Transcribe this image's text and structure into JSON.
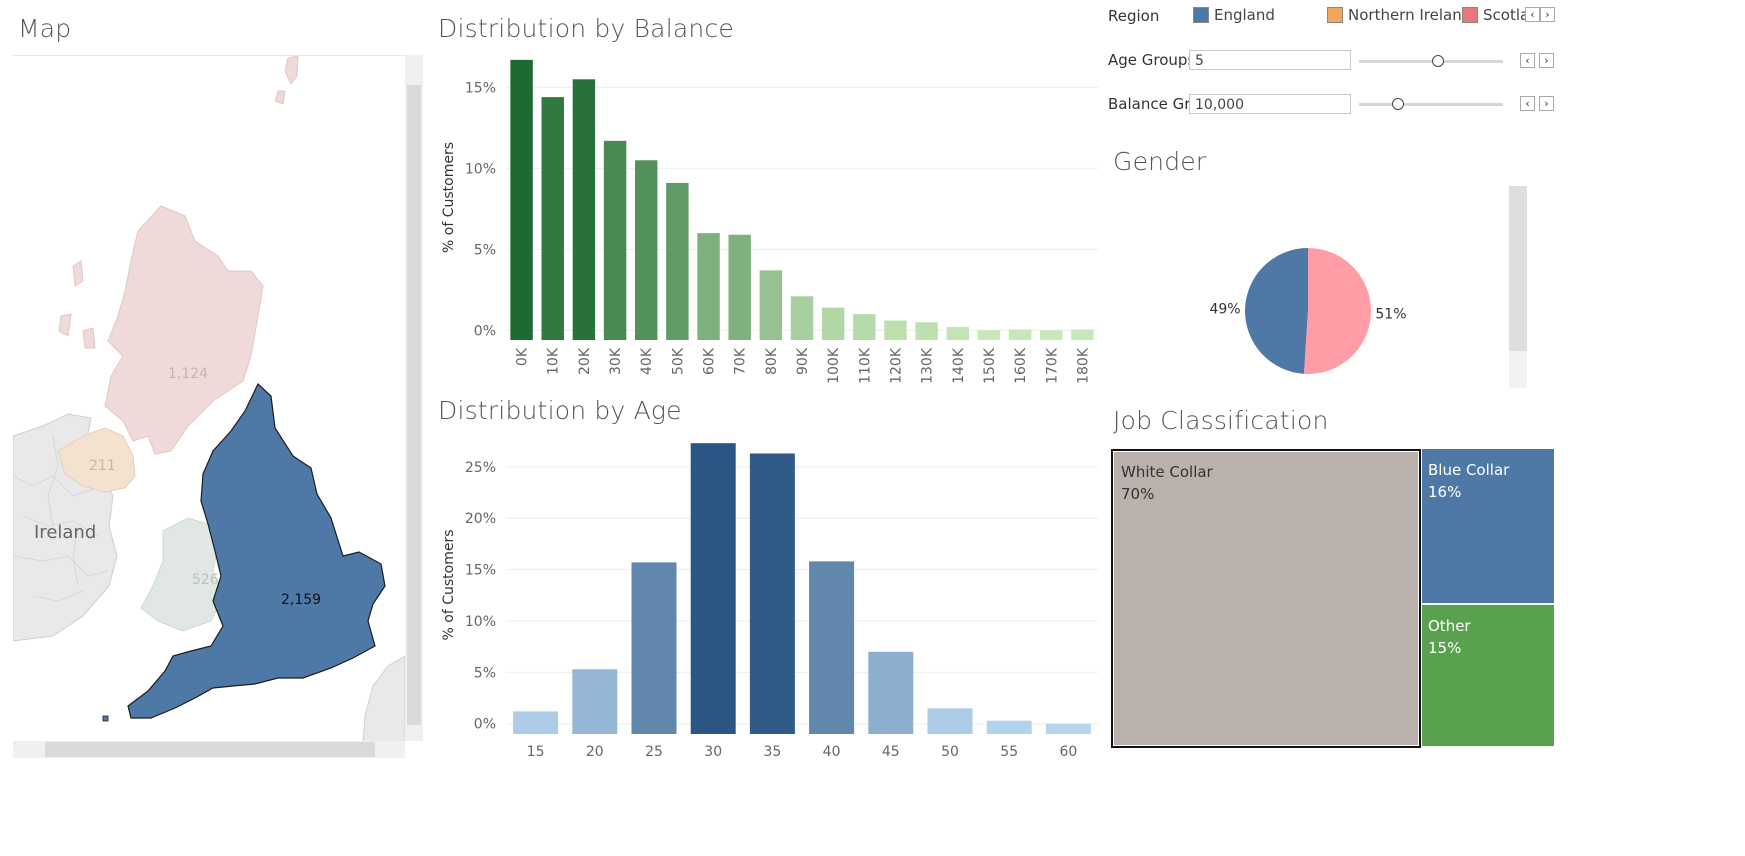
{
  "map": {
    "title": "Map",
    "ireland_label": "Ireland",
    "regions": [
      {
        "name": "Scotland",
        "value": "1,124",
        "color": "#f0d9d9"
      },
      {
        "name": "Northern Ireland",
        "value": "211",
        "color": "#f3e2cf"
      },
      {
        "name": "Wales",
        "value": "526",
        "color": "#e1e8e4"
      },
      {
        "name": "England",
        "value": "2,159",
        "color": "#4e79a7"
      }
    ]
  },
  "filters": {
    "region_label": "Region",
    "legend": [
      {
        "name": "England",
        "color": "#4e79a7"
      },
      {
        "name": "Northern Ireland",
        "color": "#f3a65a"
      },
      {
        "name": "Scotlar",
        "color": "#e8767b"
      }
    ],
    "age_groups": {
      "label": "Age Groups",
      "value": "5",
      "slider": 0.55
    },
    "balance_groups": {
      "label": "Balance Gr...",
      "value": "10,000",
      "slider": 0.25
    }
  },
  "balance": {
    "title": "Distribution by Balance",
    "chart_data": {
      "type": "bar",
      "categories": [
        "0K",
        "10K",
        "20K",
        "30K",
        "40K",
        "50K",
        "60K",
        "70K",
        "80K",
        "90K",
        "100K",
        "110K",
        "120K",
        "130K",
        "140K",
        "150K",
        "160K",
        "170K",
        "180K"
      ],
      "values": [
        16.7,
        14.4,
        15.5,
        11.7,
        10.5,
        9.1,
        6.0,
        5.9,
        3.7,
        2.1,
        1.4,
        1.0,
        0.6,
        0.5,
        0.2,
        0.0,
        0.05,
        0.0,
        0.05
      ],
      "ylabel": "% of Customers",
      "yticks": [
        "15%",
        "10%",
        "5%",
        "0%"
      ],
      "ytick_values": [
        15,
        10,
        5,
        0
      ],
      "ylim": [
        -0.6,
        17
      ]
    }
  },
  "age": {
    "title": "Distribution by Age",
    "chart_data": {
      "type": "bar",
      "categories": [
        "15",
        "20",
        "25",
        "30",
        "35",
        "40",
        "45",
        "50",
        "55",
        "60"
      ],
      "values": [
        1.2,
        5.3,
        15.7,
        27.3,
        26.3,
        15.8,
        7.0,
        1.5,
        0.3,
        0.0
      ],
      "ylabel": "% of Customers",
      "yticks": [
        "25%",
        "20%",
        "15%",
        "10%",
        "5%",
        "0%"
      ],
      "ytick_values": [
        25,
        20,
        15,
        10,
        5,
        0
      ],
      "ylim": [
        -1,
        28
      ]
    }
  },
  "gender": {
    "title": "Gender",
    "chart_data": {
      "type": "pie",
      "slices": [
        {
          "label": "49%",
          "value": 49,
          "color": "#4e79a7"
        },
        {
          "label": "51%",
          "value": 51,
          "color": "#ff9da7"
        }
      ]
    }
  },
  "jobs": {
    "title": "Job Classification",
    "items": [
      {
        "name": "White Collar",
        "pct": "70%",
        "color": "#bab0ac"
      },
      {
        "name": "Blue Collar",
        "pct": "16%",
        "color": "#4e79a7"
      },
      {
        "name": "Other",
        "pct": "15%",
        "color": "#59a14f"
      }
    ]
  }
}
